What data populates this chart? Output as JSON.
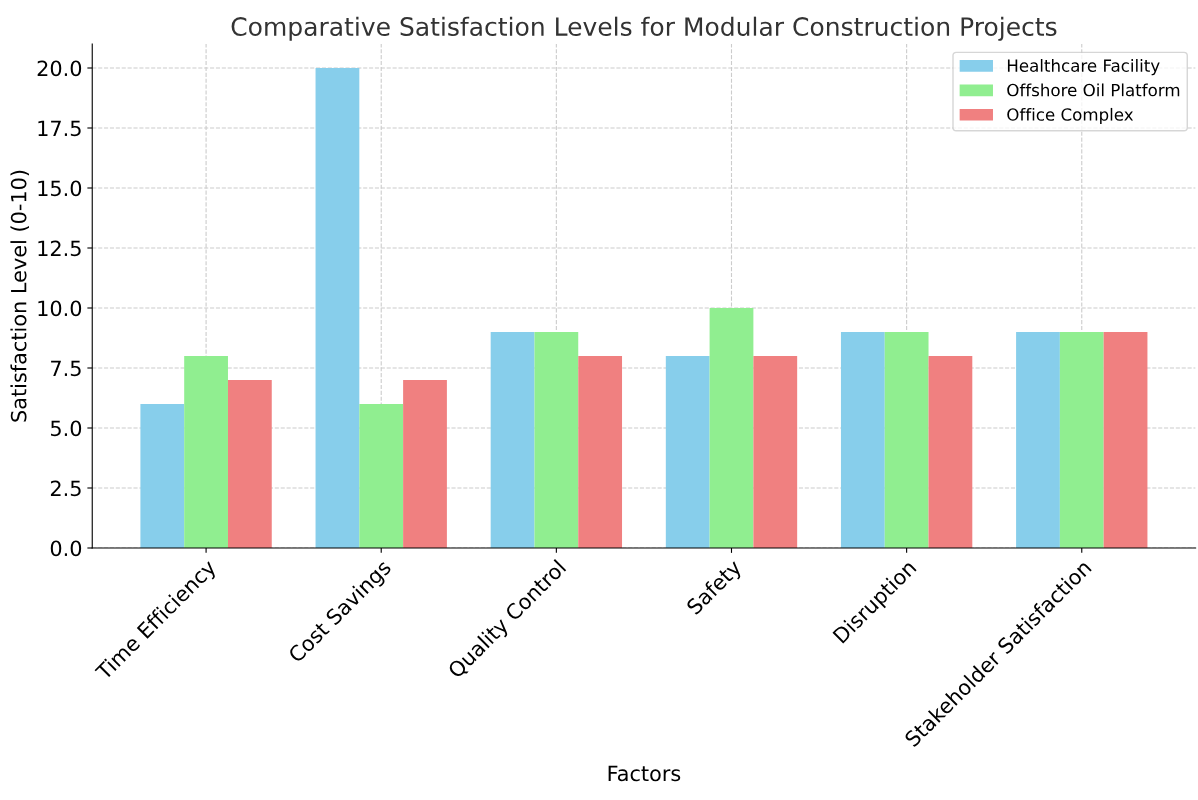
{
  "chart_data": {
    "type": "bar",
    "title": "Comparative Satisfaction Levels for Modular Construction Projects",
    "xlabel": "Factors",
    "ylabel": "Satisfaction Level (0-10)",
    "categories": [
      "Time Efficiency",
      "Cost Savings",
      "Quality Control",
      "Safety",
      "Disruption",
      "Stakeholder Satisfaction"
    ],
    "series": [
      {
        "name": "Healthcare Facility",
        "color": "#87ceeb",
        "values": [
          6,
          20,
          9,
          8,
          9,
          9
        ]
      },
      {
        "name": "Offshore Oil Platform",
        "color": "#90ee90",
        "values": [
          8,
          6,
          9,
          10,
          9,
          9
        ]
      },
      {
        "name": "Office Complex",
        "color": "#f08080",
        "values": [
          7,
          7,
          8,
          8,
          8,
          9
        ]
      }
    ],
    "ylim": [
      0,
      21
    ],
    "yticks": [
      {
        "value": 0,
        "label": "0.0"
      },
      {
        "value": 2.5,
        "label": "2.5"
      },
      {
        "value": 5,
        "label": "5.0"
      },
      {
        "value": 7.5,
        "label": "7.5"
      },
      {
        "value": 10,
        "label": "10.0"
      },
      {
        "value": 12.5,
        "label": "12.5"
      },
      {
        "value": 15,
        "label": "15.0"
      },
      {
        "value": 17.5,
        "label": "17.5"
      },
      {
        "value": 20,
        "label": "20.0"
      }
    ],
    "grid": true,
    "legend": "top right"
  }
}
